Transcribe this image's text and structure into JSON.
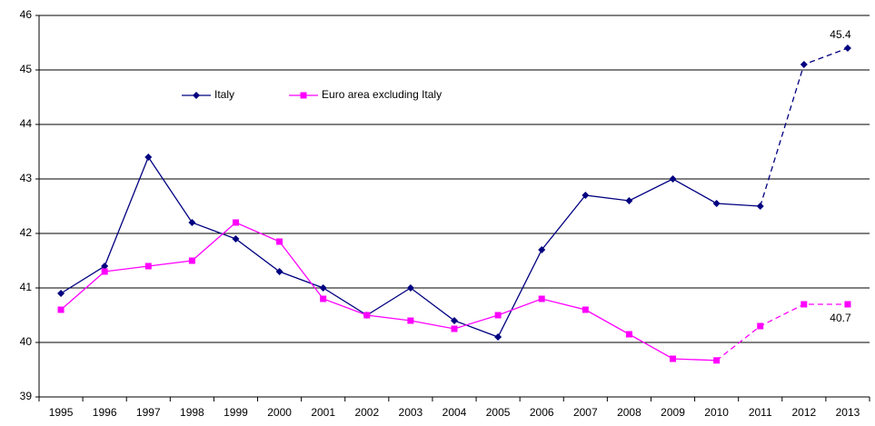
{
  "chart_data": {
    "type": "line",
    "categories": [
      "1995",
      "1996",
      "1997",
      "1998",
      "1999",
      "2000",
      "2001",
      "2002",
      "2003",
      "2004",
      "2005",
      "2006",
      "2007",
      "2008",
      "2009",
      "2010",
      "2011",
      "2012",
      "2013"
    ],
    "series": [
      {
        "name": "Italy",
        "color": "#000080",
        "marker": "diamond",
        "dashed_from": "2011",
        "label_last": true,
        "values": [
          40.9,
          41.4,
          43.4,
          42.2,
          41.9,
          41.3,
          41.0,
          40.5,
          41.0,
          40.4,
          40.1,
          41.7,
          42.7,
          42.6,
          43.0,
          42.55,
          42.5,
          45.1,
          45.4
        ]
      },
      {
        "name": "Euro area excluding Italy",
        "color": "#ff00ff",
        "marker": "square",
        "dashed_from": "2010",
        "label_last": true,
        "values": [
          40.6,
          41.3,
          41.4,
          41.5,
          42.2,
          41.85,
          40.8,
          40.5,
          40.4,
          40.25,
          40.5,
          40.8,
          40.6,
          40.15,
          39.7,
          39.67,
          40.3,
          40.7,
          40.7
        ]
      }
    ],
    "ylim": [
      39,
      46
    ],
    "yticks": [
      39,
      40,
      41,
      42,
      43,
      44,
      45,
      46
    ],
    "grid": true,
    "legend": "top-left"
  }
}
